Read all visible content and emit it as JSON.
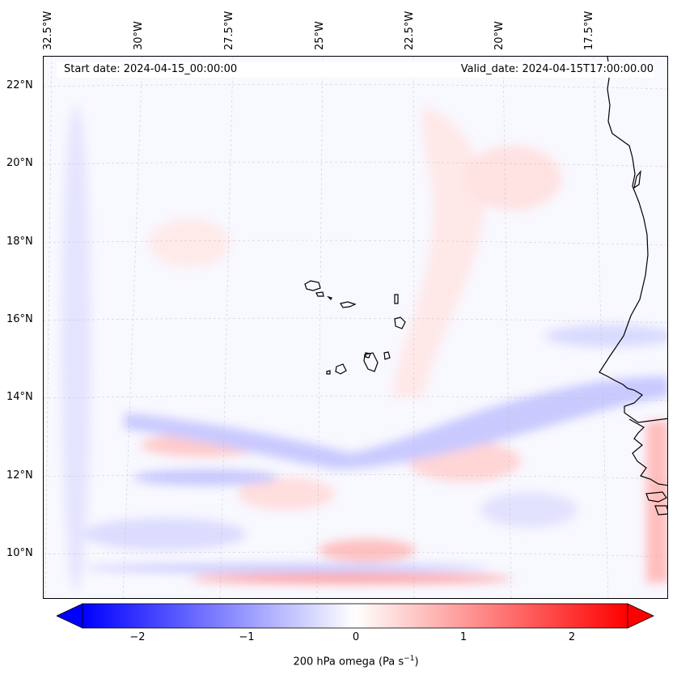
{
  "map": {
    "start_date": "Start date: 2024-04-15_00:00:00",
    "valid_date": "Valid_date: 2024-04-15T17:00:00.00",
    "lon_labels": [
      "32.5°W",
      "30°W",
      "27.5°W",
      "25°W",
      "22.5°W",
      "20°W",
      "17.5°W"
    ],
    "lat_labels": [
      "22°N",
      "20°N",
      "18°N",
      "16°N",
      "14°N",
      "12°N",
      "10°N"
    ],
    "gridlines": true,
    "colors": {
      "negative": "#0000ff",
      "zero": "#ffffff",
      "positive": "#ff0000",
      "coast": "#000000"
    }
  },
  "colorbar": {
    "ticks": [
      "−2",
      "−1",
      "0",
      "1",
      "2"
    ],
    "label": "200 hPa omega (Pa s",
    "label_sup": "−1",
    "label_end": ")",
    "range": [
      -2.5,
      2.5
    ],
    "extend": "both",
    "cmap": "bwr"
  }
}
